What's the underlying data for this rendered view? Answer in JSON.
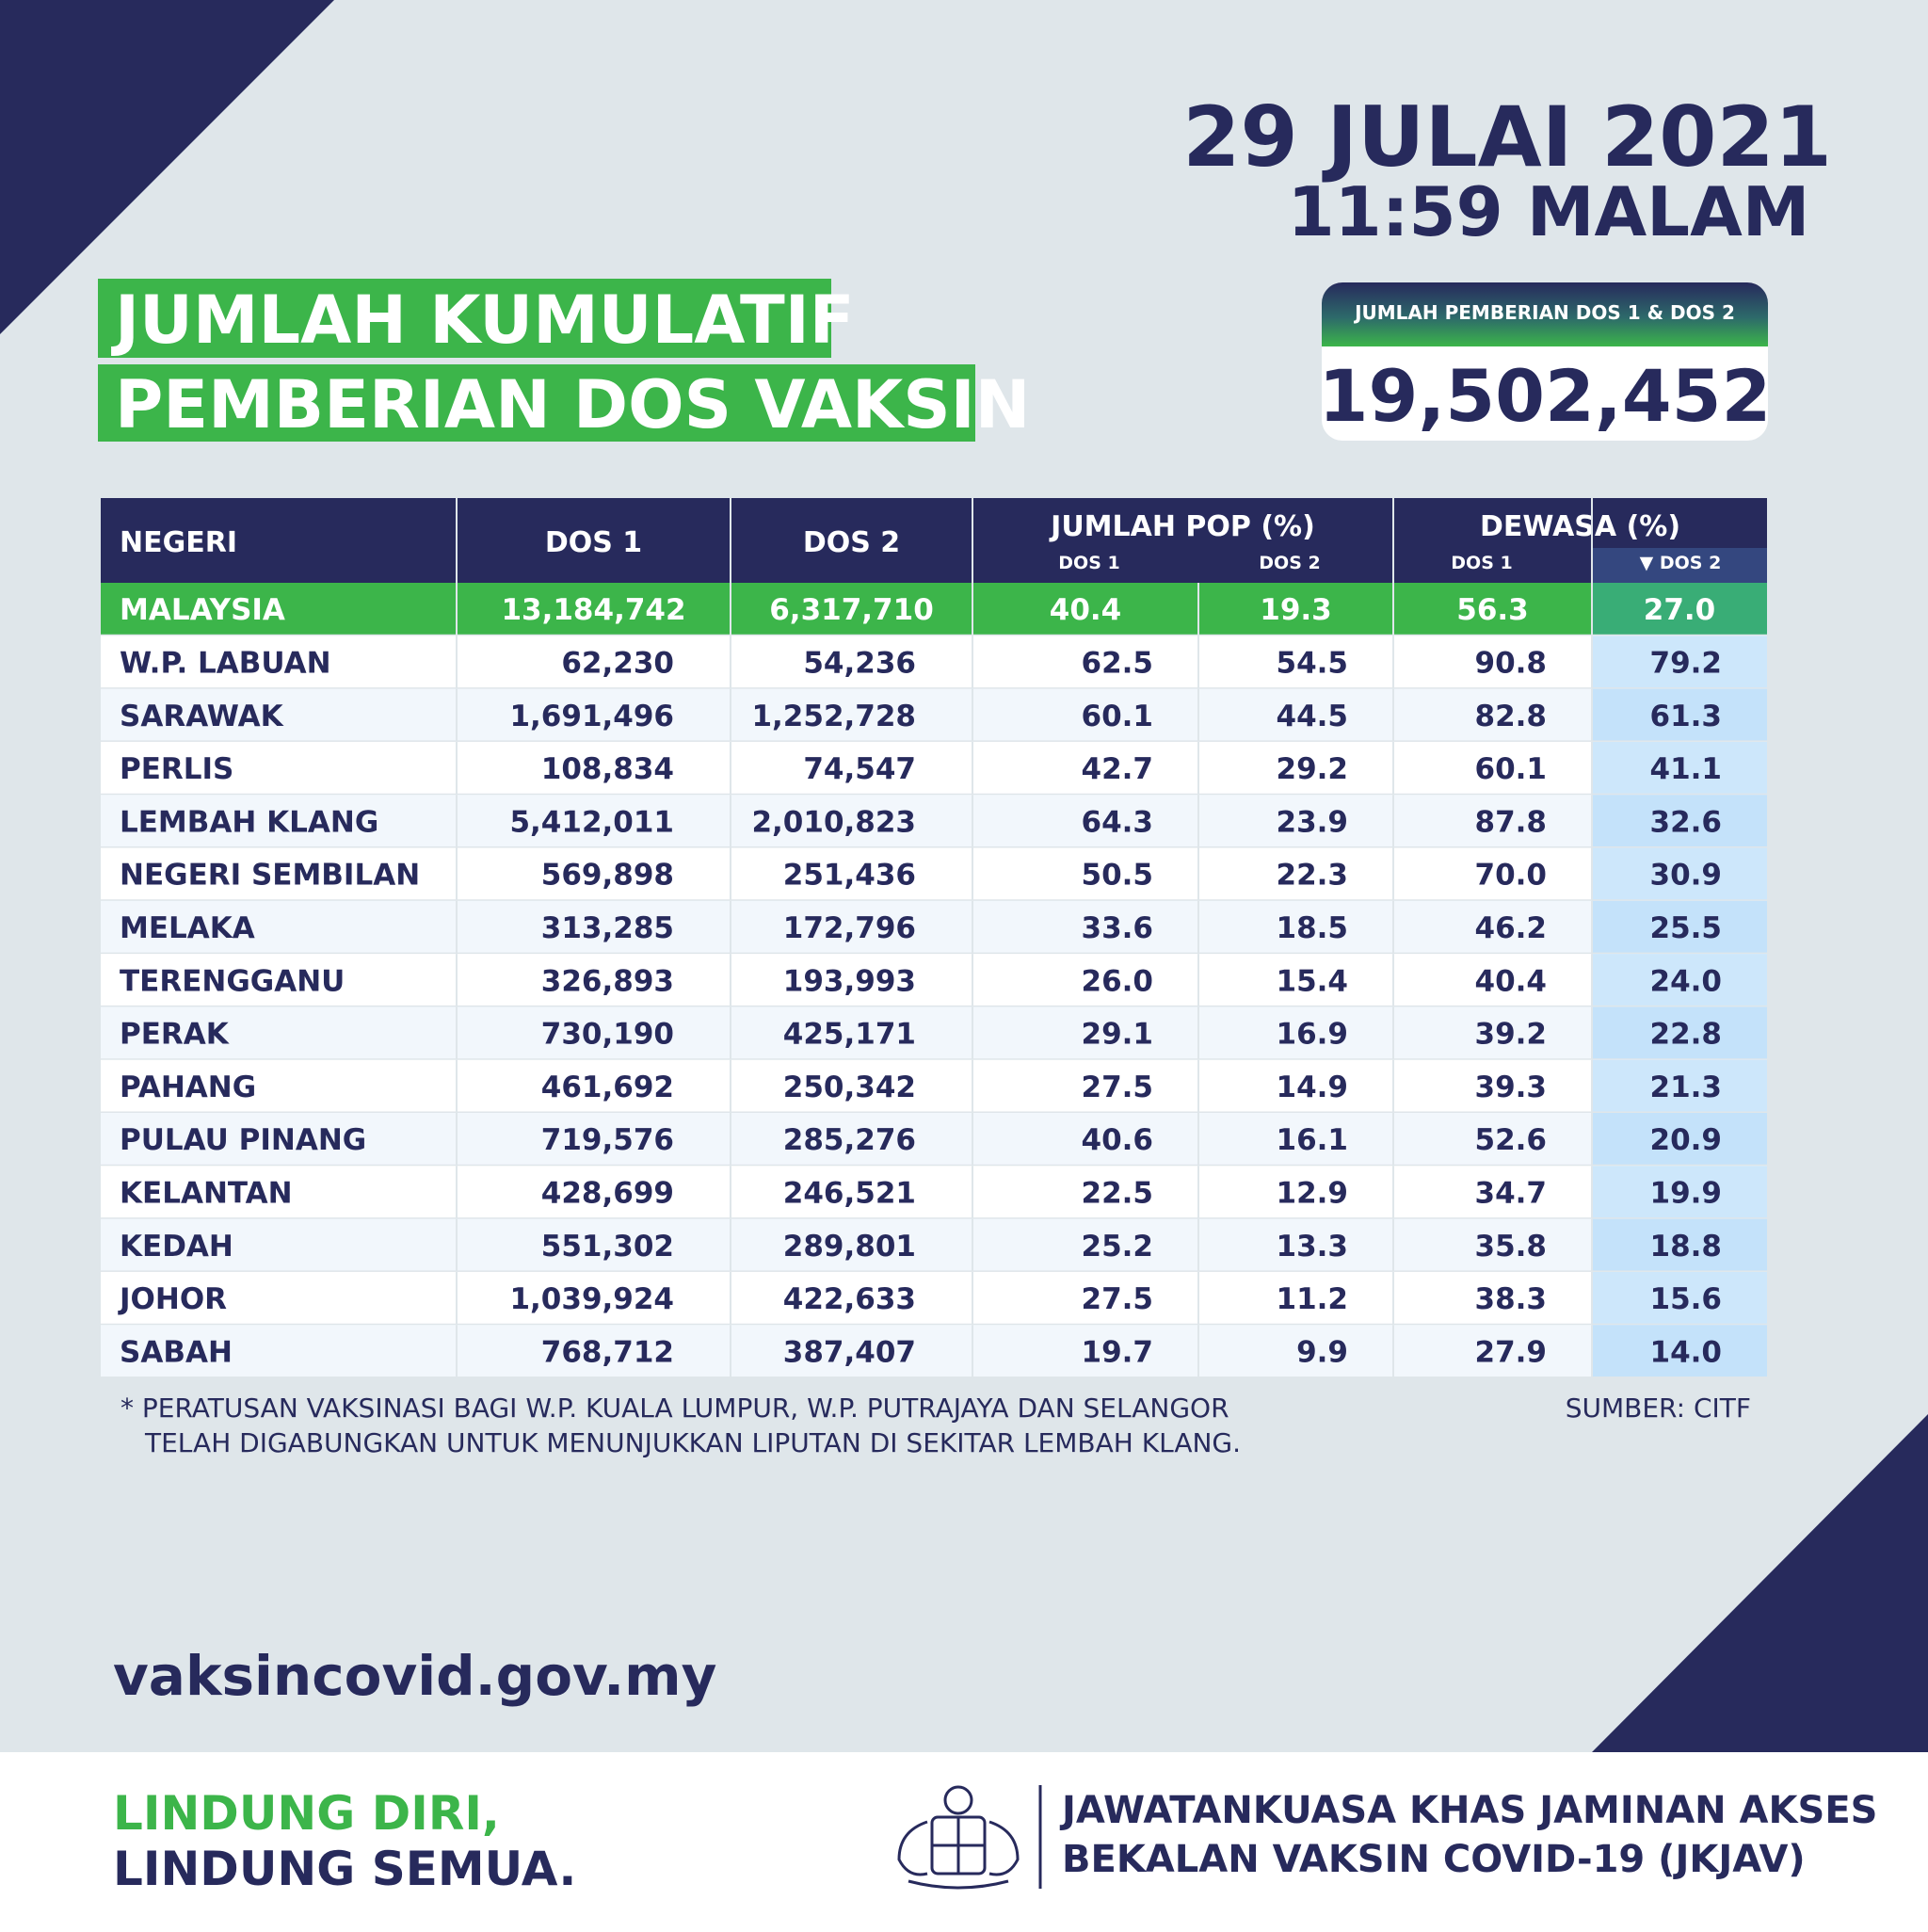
{
  "header": {
    "date": "29 JULAI 2021",
    "time": "11:59 MALAM"
  },
  "title": {
    "line1": "JUMLAH KUMULATIF",
    "line2": "PEMBERIAN DOS VAKSIN"
  },
  "total": {
    "label": "JUMLAH PEMBERIAN DOS 1 & DOS 2",
    "value": "19,502,452"
  },
  "table": {
    "columns": [
      "NEGERI",
      "DOS 1",
      "DOS 2",
      "JUMLAH POP (%)",
      "DEWASA (%)"
    ],
    "subcolumns": [
      "DOS 1",
      "DOS 2",
      "DOS 1",
      "▼ DOS 2"
    ],
    "rows": [
      [
        "MALAYSIA",
        "13,184,742",
        "6,317,710",
        "40.4",
        "19.3",
        "56.3",
        "27.0"
      ],
      [
        "W.P. LABUAN",
        "62,230",
        "54,236",
        "62.5",
        "54.5",
        "90.8",
        "79.2"
      ],
      [
        "SARAWAK",
        "1,691,496",
        "1,252,728",
        "60.1",
        "44.5",
        "82.8",
        "61.3"
      ],
      [
        "PERLIS",
        "108,834",
        "74,547",
        "42.7",
        "29.2",
        "60.1",
        "41.1"
      ],
      [
        "LEMBAH KLANG",
        "5,412,011",
        "2,010,823",
        "64.3",
        "23.9",
        "87.8",
        "32.6"
      ],
      [
        "NEGERI SEMBILAN",
        "569,898",
        "251,436",
        "50.5",
        "22.3",
        "70.0",
        "30.9"
      ],
      [
        "MELAKA",
        "313,285",
        "172,796",
        "33.6",
        "18.5",
        "46.2",
        "25.5"
      ],
      [
        "TERENGGANU",
        "326,893",
        "193,993",
        "26.0",
        "15.4",
        "40.4",
        "24.0"
      ],
      [
        "PERAK",
        "730,190",
        "425,171",
        "29.1",
        "16.9",
        "39.2",
        "22.8"
      ],
      [
        "PAHANG",
        "461,692",
        "250,342",
        "27.5",
        "14.9",
        "39.3",
        "21.3"
      ],
      [
        "PULAU PINANG",
        "719,576",
        "285,276",
        "40.6",
        "16.1",
        "52.6",
        "20.9"
      ],
      [
        "KELANTAN",
        "428,699",
        "246,521",
        "22.5",
        "12.9",
        "34.7",
        "19.9"
      ],
      [
        "KEDAH",
        "551,302",
        "289,801",
        "25.2",
        "13.3",
        "35.8",
        "18.8"
      ],
      [
        "JOHOR",
        "1,039,924",
        "422,633",
        "27.5",
        "11.2",
        "38.3",
        "15.6"
      ],
      [
        "SABAH",
        "768,712",
        "387,407",
        "19.7",
        "9.9",
        "27.9",
        "14.0"
      ]
    ]
  },
  "footnote": {
    "lines": [
      "* PERATUSAN VAKSINASI BAGI W.P. KUALA LUMPUR, W.P. PUTRAJAYA DAN SELANGOR",
      "TELAH DIGABUNGKAN UNTUK MENUNJUKKAN LIPUTAN DI SEKITAR LEMBAH KLANG."
    ],
    "source": "SUMBER: CITF"
  },
  "website": "vaksincovid.gov.my",
  "slogan": {
    "line1": "LINDUNG DIRI,",
    "line2": "LINDUNG SEMUA."
  },
  "organization": {
    "line1": "JAWATANKUASA KHAS JAMINAN AKSES",
    "line2": "BEKALAN VAKSIN COVID-19 (JKJAV)"
  }
}
